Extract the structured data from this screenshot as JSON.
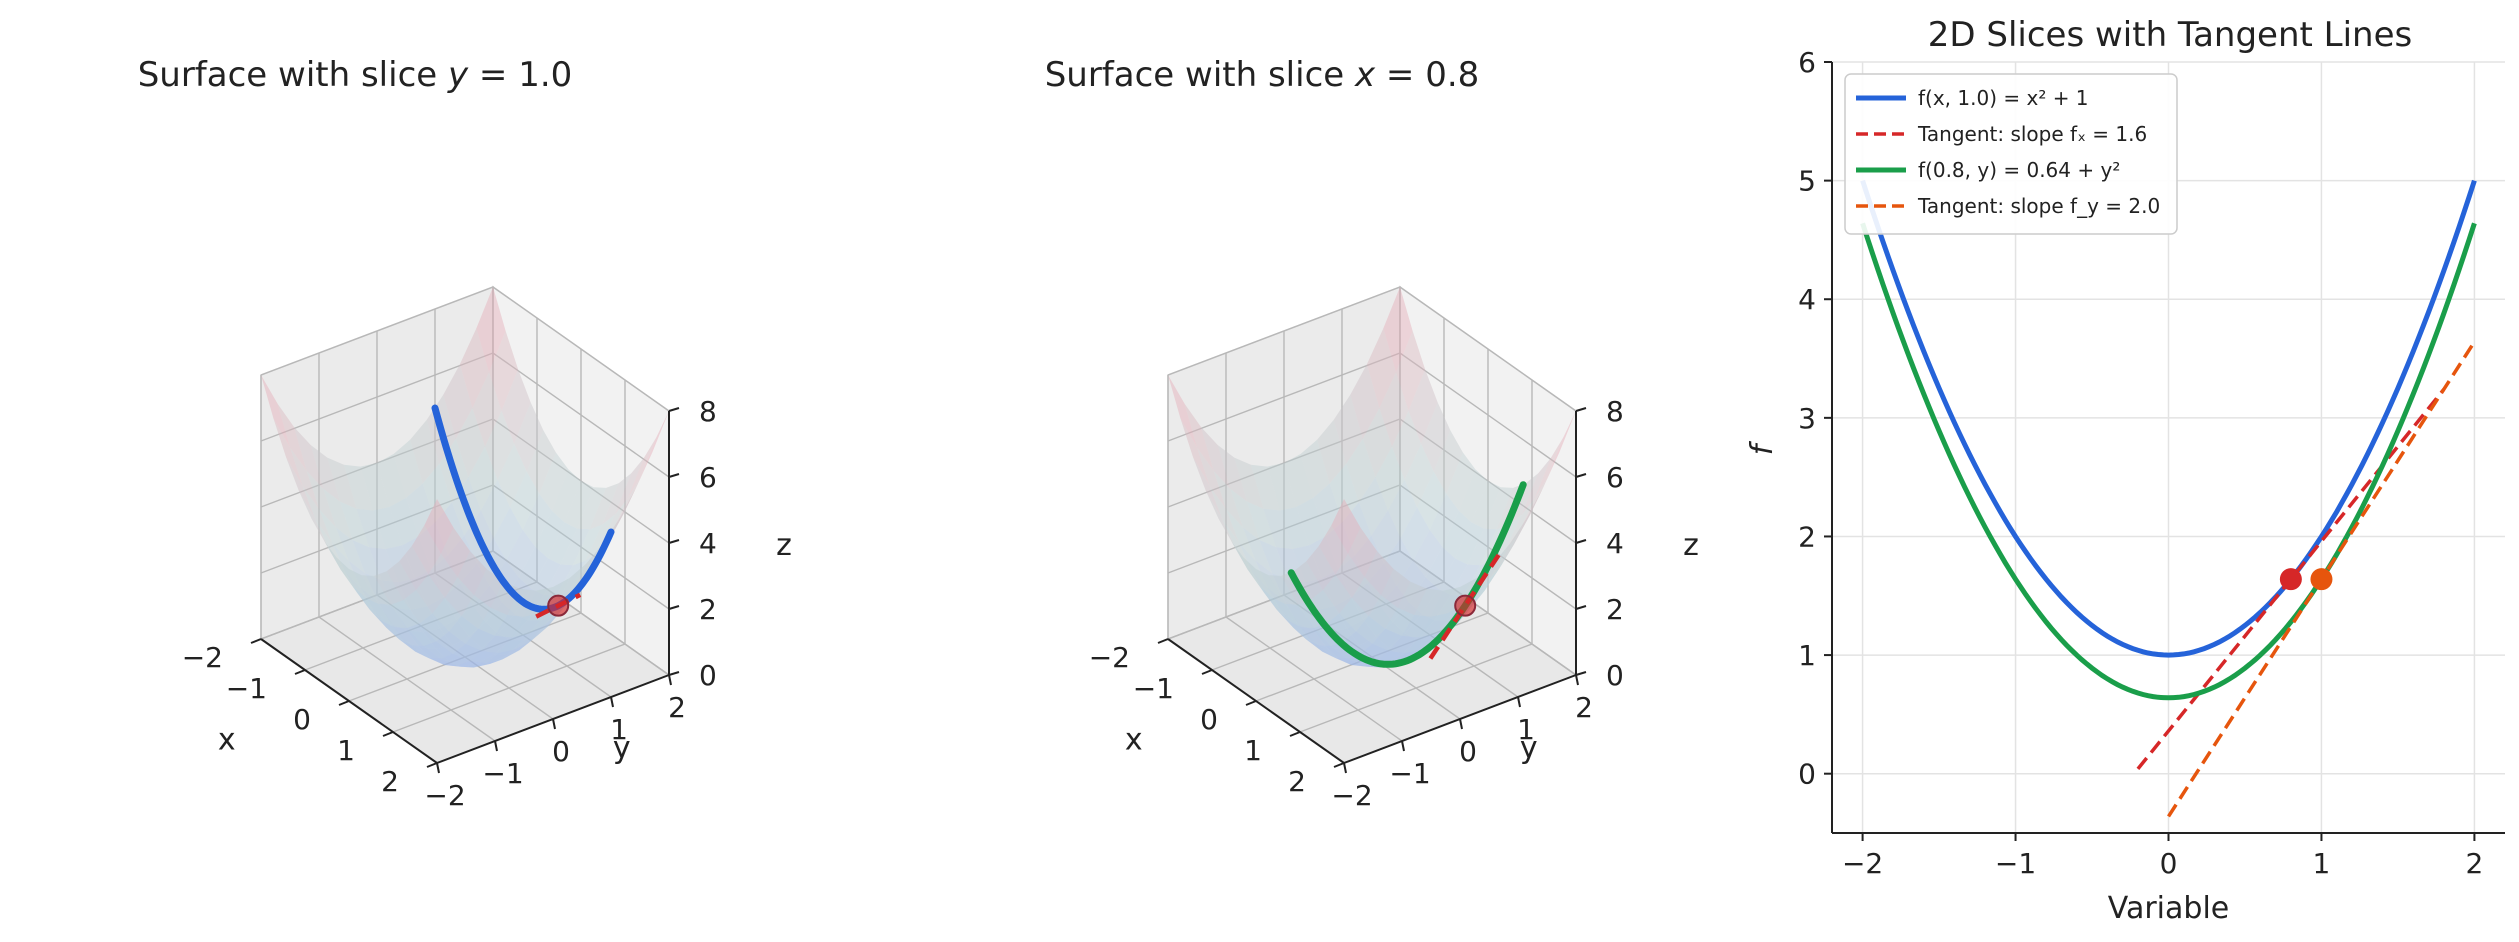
{
  "chart_data": [
    {
      "type": "surface3d",
      "title": "Surface with slice y = 1.0",
      "title_prefix": "Surface with slice ",
      "title_var": "y",
      "title_value": "= 1.0",
      "function": "f(x,y) = x^2 + y^2",
      "xlabel": "x",
      "ylabel": "y",
      "zlabel": "z",
      "xlim": [
        -2,
        2
      ],
      "ylim": [
        -2,
        2
      ],
      "zlim": [
        0,
        8
      ],
      "xticks": [
        -2,
        -1,
        0,
        1,
        2
      ],
      "yticks": [
        -2,
        -1,
        0,
        1,
        2
      ],
      "zticks": [
        0,
        2,
        4,
        6,
        8
      ],
      "slice": {
        "axis": "y",
        "value": 1.0,
        "range": [
          -2,
          2
        ],
        "color": "#2563d9"
      },
      "point": {
        "x": 0.8,
        "y": 1.0,
        "z": 1.64,
        "color": "#d62728"
      },
      "tangent": {
        "direction": "x",
        "slope": 1.6,
        "range": [
          -0.5,
          0.5
        ],
        "color": "#d62728"
      }
    },
    {
      "type": "surface3d",
      "title": "Surface with slice x = 0.8",
      "title_prefix": "Surface with slice ",
      "title_var": "x",
      "title_value": "= 0.8",
      "function": "f(x,y) = x^2 + y^2",
      "xlabel": "x",
      "ylabel": "y",
      "zlabel": "z",
      "xlim": [
        -2,
        2
      ],
      "ylim": [
        -2,
        2
      ],
      "zlim": [
        0,
        8
      ],
      "xticks": [
        -2,
        -1,
        0,
        1,
        2
      ],
      "yticks": [
        -2,
        -1,
        0,
        1,
        2
      ],
      "zticks": [
        0,
        2,
        4,
        6,
        8
      ],
      "slice": {
        "axis": "x",
        "value": 0.8,
        "range": [
          -2,
          2
        ],
        "color": "#1a9e4a"
      },
      "point": {
        "x": 0.8,
        "y": 1.0,
        "z": 1.64,
        "color": "#d62728"
      },
      "tangent": {
        "direction": "y",
        "slope": 2.0,
        "range": [
          -0.6,
          0.6
        ],
        "color": "#d62728"
      }
    },
    {
      "type": "line",
      "title": "2D Slices with Tangent Lines",
      "xlabel": "Variable",
      "ylabel": "f",
      "xlim": [
        -2.2,
        2.2
      ],
      "ylim": [
        -0.5,
        6
      ],
      "xticks": [
        -2,
        -1,
        0,
        1,
        2
      ],
      "yticks": [
        0,
        1,
        2,
        3,
        4,
        5,
        6
      ],
      "grid": true,
      "legend_position": "top-left",
      "series": [
        {
          "name": "f(x, 1.0) = x² + 1",
          "kind": "curve",
          "a": 1.0,
          "c": 1.0,
          "range": [
            -2,
            2
          ],
          "color": "#2563d9",
          "dash": "solid"
        },
        {
          "name": "Tangent: slope fₓ = 1.6",
          "kind": "line",
          "slope": 1.6,
          "at": 0.8,
          "value": 1.64,
          "range": [
            -0.2,
            1.8
          ],
          "color": "#d62728",
          "dash": "dashed"
        },
        {
          "name": "f(0.8, y) = 0.64 + y²",
          "kind": "curve",
          "a": 1.0,
          "c": 0.64,
          "range": [
            -2,
            2
          ],
          "color": "#1a9e4a",
          "dash": "solid"
        },
        {
          "name": "Tangent: slope f_y = 2.0",
          "kind": "line",
          "slope": 2.0,
          "at": 1.0,
          "value": 1.64,
          "range": [
            0.0,
            2.0
          ],
          "color": "#e6550d",
          "dash": "dashed"
        }
      ],
      "points": [
        {
          "x": 0.8,
          "y": 1.64,
          "color": "#d62728"
        },
        {
          "x": 1.0,
          "y": 1.64,
          "color": "#e6550d"
        }
      ]
    }
  ]
}
